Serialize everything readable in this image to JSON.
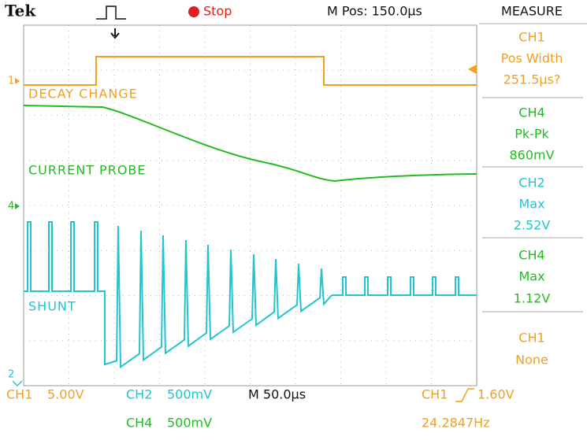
{
  "header": {
    "brand": "Tek",
    "status": "Stop",
    "position": "M Pos: 150.0µs",
    "menu": "MEASURE"
  },
  "traces": [
    {
      "channel": "1",
      "label": "DECAY CHANGE"
    },
    {
      "channel": "4",
      "label": "CURRENT PROBE"
    },
    {
      "channel": "2",
      "label": "SHUNT"
    }
  ],
  "measurements": [
    {
      "channel": "CH1",
      "label": "Pos Width",
      "value": "251.5µs?"
    },
    {
      "channel": "CH4",
      "label": "Pk-Pk",
      "value": "860mV"
    },
    {
      "channel": "CH2",
      "label": "Max",
      "value": "2.52V"
    },
    {
      "channel": "CH4",
      "label": "Max",
      "value": "1.12V"
    },
    {
      "channel": "CH1",
      "label": "None"
    }
  ],
  "footer": {
    "ch1": "CH1",
    "ch1_scale": "5.00V",
    "ch2": "CH2",
    "ch2_scale": "500mV",
    "ch4": "CH4",
    "ch4_scale": "500mV",
    "timebase": "M 50.0µs",
    "trigger_channel": "CH1",
    "trigger_level": "1.60V",
    "frequency": "24.2847Hz"
  }
}
